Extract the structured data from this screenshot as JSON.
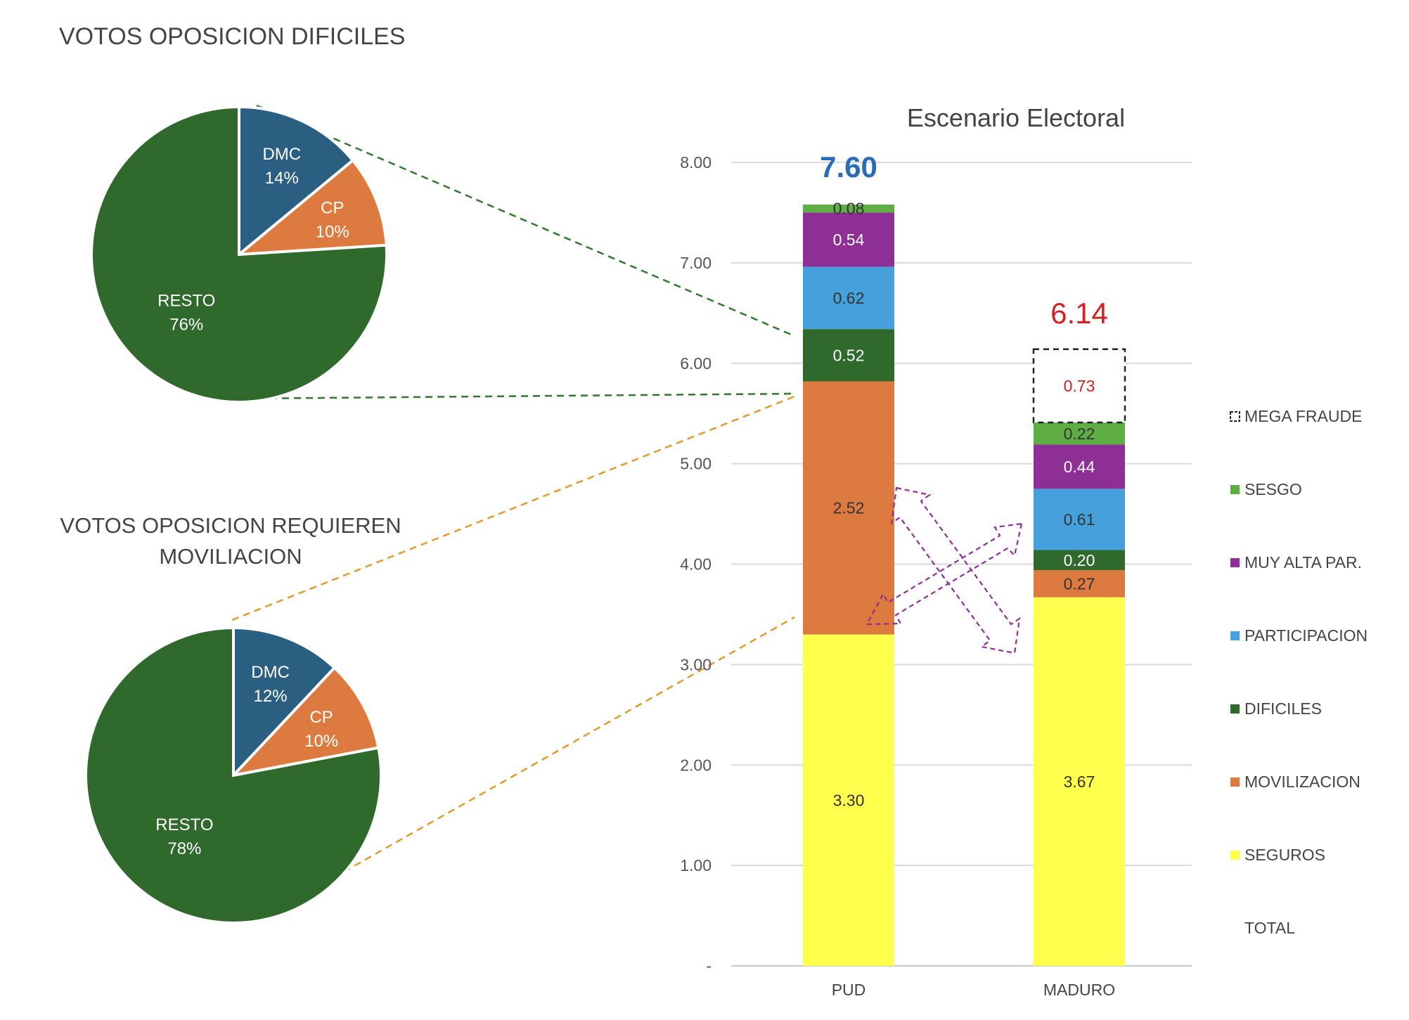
{
  "chart_data": [
    {
      "type": "pie",
      "title": "VOTOS  OPOSICION DIFICILES",
      "slices": [
        {
          "label": "DMC",
          "value": 14,
          "pct_label": "14%",
          "color": "#2b5f82"
        },
        {
          "label": "CP",
          "value": 10,
          "pct_label": "10%",
          "color": "#dd7a40"
        },
        {
          "label": "RESTO",
          "value": 76,
          "pct_label": "76%",
          "color": "#2f6a2c"
        }
      ]
    },
    {
      "type": "pie",
      "title_lines": [
        "VOTOS  OPOSICION REQUIEREN",
        "MOVILIACION"
      ],
      "slices": [
        {
          "label": "DMC",
          "value": 12,
          "pct_label": "12%",
          "color": "#2b5f82"
        },
        {
          "label": "CP",
          "value": 10,
          "pct_label": "10%",
          "color": "#dd7a40"
        },
        {
          "label": "RESTO",
          "value": 78,
          "pct_label": "78%",
          "color": "#2f6a2c"
        }
      ]
    },
    {
      "type": "bar",
      "stacked": true,
      "title": "Escenario Electoral",
      "categories": [
        "PUD",
        "MADURO"
      ],
      "ylim": [
        0,
        8
      ],
      "yticks": [
        {
          "value": 0,
          "label": "-"
        },
        {
          "value": 1,
          "label": "1.00"
        },
        {
          "value": 2,
          "label": "2.00"
        },
        {
          "value": 3,
          "label": "3.00"
        },
        {
          "value": 4,
          "label": "4.00"
        },
        {
          "value": 5,
          "label": "5.00"
        },
        {
          "value": 6,
          "label": "6.00"
        },
        {
          "value": 7,
          "label": "7.00"
        },
        {
          "value": 8,
          "label": "8.00"
        }
      ],
      "grid": true,
      "legend_position": "right",
      "series": [
        {
          "name": "SEGUROS",
          "color": "#ffff4d",
          "values": [
            3.3,
            3.67
          ],
          "labels": [
            "3.30",
            "3.67"
          ],
          "label_color": "#333333"
        },
        {
          "name": "MOVILIZACION",
          "color": "#dd7a40",
          "values": [
            2.52,
            0.27
          ],
          "labels": [
            "2.52",
            "0.27"
          ],
          "label_color": "#333333"
        },
        {
          "name": "DIFICILES",
          "color": "#2f6a2c",
          "values": [
            0.52,
            0.2
          ],
          "labels": [
            "0.52",
            "0.20"
          ],
          "label_color": "#ffffff"
        },
        {
          "name": "PARTICIPACION",
          "color": "#45a0dc",
          "values": [
            0.62,
            0.61
          ],
          "labels": [
            "0.62",
            "0.61"
          ],
          "label_color": "#333333"
        },
        {
          "name": "MUY ALTA PAR.",
          "color": "#8e2f95",
          "values": [
            0.54,
            0.44
          ],
          "labels": [
            "0.54",
            "0.44"
          ],
          "label_color": "#ffffff"
        },
        {
          "name": "SESGO",
          "color": "#5fae43",
          "values": [
            0.08,
            0.22
          ],
          "labels": [
            "0.08",
            "0.22"
          ],
          "label_color": "#333333"
        },
        {
          "name": "MEGA FRAUDE",
          "color": "#ffffff",
          "values": [
            0,
            0.73
          ],
          "labels": [
            "",
            "0.73"
          ],
          "label_color": "#d42020",
          "dashed": true
        }
      ],
      "legend_extra": "TOTAL",
      "totals": [
        {
          "category": "PUD",
          "label": "7.60",
          "color": "#2a6db5"
        },
        {
          "category": "MADURO",
          "label": "6.14",
          "color": "#d42020"
        }
      ]
    }
  ]
}
